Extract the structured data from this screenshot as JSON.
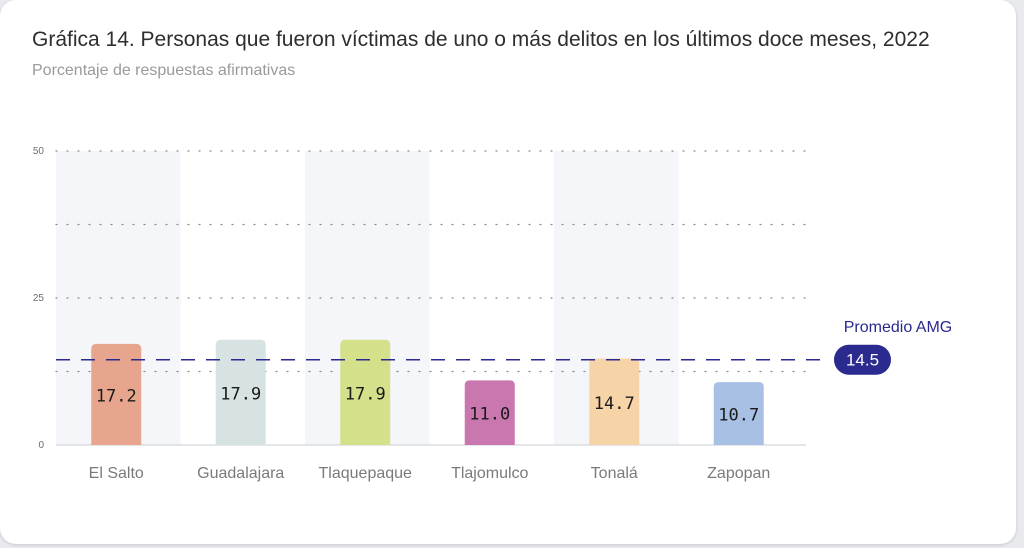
{
  "header": {
    "title": "Gráfica 14. Personas que fueron víctimas de uno o más delitos en los últimos doce meses, 2022",
    "subtitle": "Porcentaje de respuestas afirmativas"
  },
  "chart_data": {
    "type": "bar",
    "categories": [
      "El Salto",
      "Guadalajara",
      "Tlaquepaque",
      "Tlajomulco",
      "Tonalá",
      "Zapopan"
    ],
    "values": [
      17.2,
      17.9,
      17.9,
      11.0,
      14.7,
      10.7
    ],
    "value_labels": [
      "17.2",
      "17.9",
      "17.9",
      "11.0",
      "14.7",
      "10.7"
    ],
    "colors": [
      "#e8a58e",
      "#d7e3e3",
      "#d5e08a",
      "#c977ae",
      "#f7d3a8",
      "#a8c0e3"
    ],
    "ylim": [
      0,
      50
    ],
    "yticks": [
      0,
      25,
      50
    ],
    "grid": true,
    "reference_line": {
      "label": "Promedio AMG",
      "value": 14.5,
      "value_label": "14.5",
      "color": "#2a2a8f"
    }
  }
}
